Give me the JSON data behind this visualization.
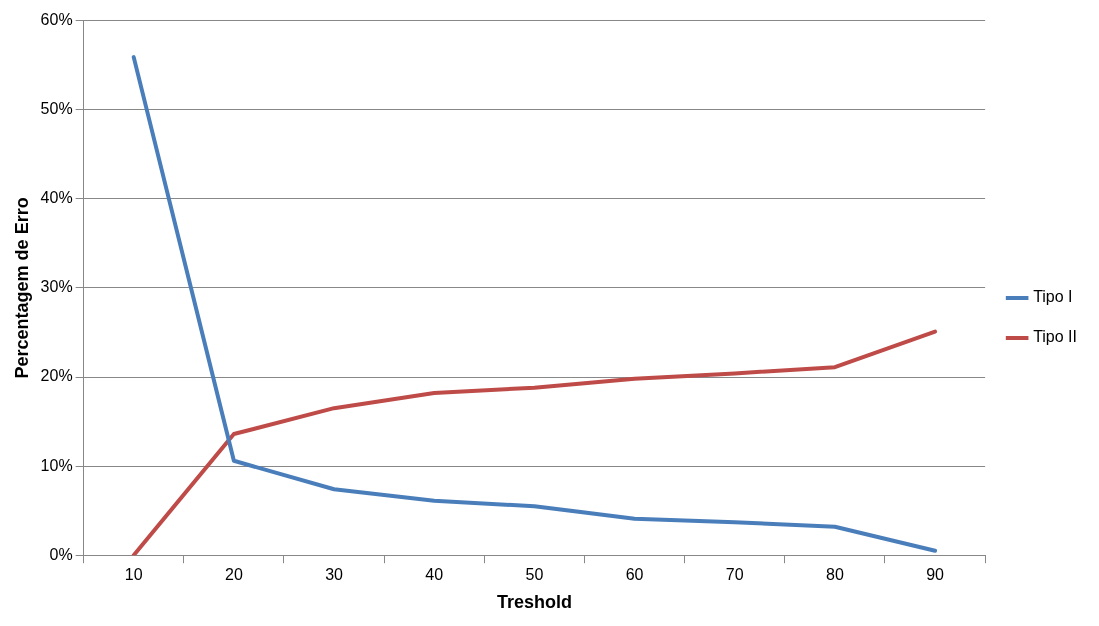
{
  "chart_data": {
    "type": "line",
    "xlabel": "Treshold",
    "ylabel": "Percentagem de Erro",
    "categories": [
      "10",
      "20",
      "30",
      "40",
      "50",
      "60",
      "70",
      "80",
      "90"
    ],
    "series": [
      {
        "name": "Tipo I",
        "color": "#4a7ebb",
        "values": [
          55.9,
          10.6,
          7.4,
          6.1,
          5.5,
          4.1,
          3.7,
          3.2,
          0.5
        ]
      },
      {
        "name": "Tipo II",
        "color": "#be4b48",
        "values": [
          0,
          13.6,
          16.5,
          18.2,
          18.8,
          19.8,
          20.4,
          21.1,
          25.1
        ]
      }
    ],
    "ylim": [
      0,
      60
    ],
    "yticks": [
      {
        "value": 0,
        "label": "0%"
      },
      {
        "value": 10,
        "label": "10%"
      },
      {
        "value": 20,
        "label": "20%"
      },
      {
        "value": 30,
        "label": "30%"
      },
      {
        "value": 40,
        "label": "40%"
      },
      {
        "value": 50,
        "label": "50%"
      },
      {
        "value": 60,
        "label": "60%"
      }
    ],
    "grid": "y",
    "legend": "right",
    "marker": "none",
    "line_style": "solid"
  }
}
